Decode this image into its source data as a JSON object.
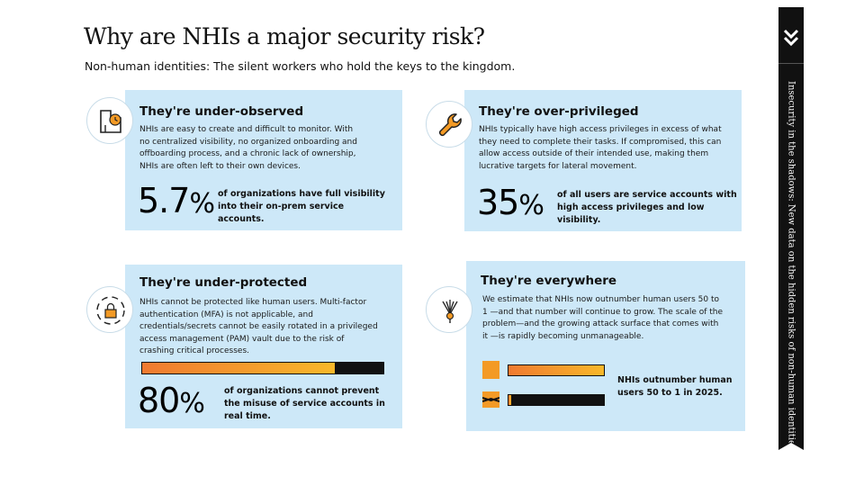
{
  "header": {
    "title": "Why are NHIs a major security risk?",
    "subtitle": "Non-human identities: The silent workers who hold the keys to the kingdom."
  },
  "side_tab": {
    "text": "Insecurity in the shadows: New data on the hidden risks of non-human identities",
    "icon": "chevron-down-double-icon"
  },
  "cards": {
    "under_observed": {
      "heading": "They're under-observed",
      "body": "NHIs are easy to create and difficult to monitor. With no centralized visibility, no organized onboarding and offboarding process, and a chronic lack of ownership, NHIs are often left to their own devices.",
      "stat_value": "5.7",
      "stat_unit": "%",
      "stat_text": "of organizations have full visibility into their on-prem service accounts.",
      "icon": "floor-plan-clock-icon"
    },
    "over_privileged": {
      "heading": "They're over-privileged",
      "body": "NHIs typically have high access privileges in excess of what they need to complete their tasks. If compromised, this can allow access outside of their intended use, making them lucrative targets for lateral movement.",
      "stat_value": "35",
      "stat_unit": "%",
      "stat_text": "of all users are service accounts with high access privileges and low visibility.",
      "icon": "wrench-icon"
    },
    "under_protected": {
      "heading": "They're under-protected",
      "body": "NHIs cannot be protected like human users. Multi-factor authentication (MFA) is not applicable, and credentials/secrets cannot be easily rotated in a privileged access management (PAM) vault due to the risk of crashing critical processes.",
      "stat_value": "80",
      "stat_unit": "%",
      "stat_text": "of organizations cannot prevent the misuse of service accounts in real time.",
      "progress": 0.8,
      "icon": "padlock-icon"
    },
    "everywhere": {
      "heading": "They're everywhere",
      "body": "We estimate that NHIs now outnumber human users 50 to 1 —and that number will continue to grow. The scale of the problem—and the growing attack surface that comes with it —is rapidly becoming unmanageable.",
      "stat_text": "NHIs outnumber human users 50 to 1 in 2025.",
      "nhi_share": 1.0,
      "human_share": 0.02,
      "icon": "network-tree-icon"
    }
  },
  "colors": {
    "card_bg": "#cde8f8",
    "accent_orange": "#f39a25",
    "gradient_start": "#f07a30",
    "gradient_end": "#f9b82a",
    "dark": "#111111"
  }
}
